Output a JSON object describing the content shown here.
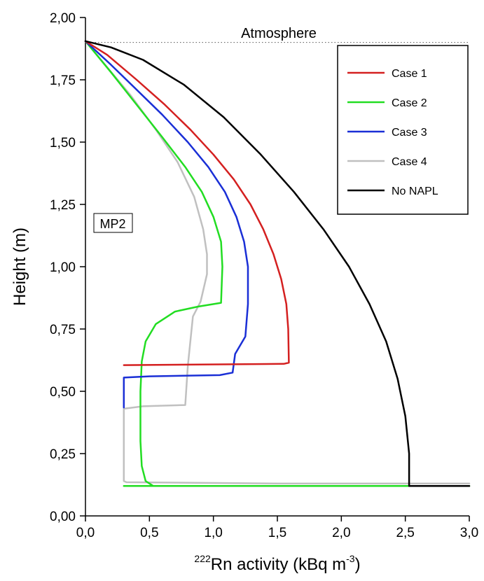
{
  "chart_data": {
    "type": "line",
    "xlabel_sup": "222",
    "xlabel_main": "Rn activity (kBq m",
    "xlabel_exp": "-3",
    "xlabel_close": ")",
    "ylabel": "Height (m)",
    "xlim": [
      0,
      3
    ],
    "ylim": [
      0,
      2
    ],
    "xticks": [
      "0,0",
      "0,5",
      "1,0",
      "1,5",
      "2,0",
      "2,5",
      "3,0"
    ],
    "yticks": [
      "0,00",
      "0,25",
      "0,50",
      "0,75",
      "1,00",
      "1,25",
      "1,50",
      "1,75",
      "2,00"
    ],
    "grid": false,
    "legend_position": "top-right",
    "annotations": {
      "atmosphere_label": "Atmosphere",
      "atmosphere_level": 1.9,
      "sample_label": "MP2"
    },
    "series": [
      {
        "name": "Case 1",
        "color": "#d42020",
        "points": [
          [
            0.3,
            0.605
          ],
          [
            1.55,
            0.61
          ],
          [
            1.59,
            0.615
          ],
          [
            1.585,
            0.75
          ],
          [
            1.57,
            0.85
          ],
          [
            1.53,
            0.95
          ],
          [
            1.47,
            1.05
          ],
          [
            1.39,
            1.15
          ],
          [
            1.29,
            1.25
          ],
          [
            1.16,
            1.35
          ],
          [
            1.0,
            1.45
          ],
          [
            0.82,
            1.55
          ],
          [
            0.62,
            1.65
          ],
          [
            0.4,
            1.75
          ],
          [
            0.17,
            1.85
          ],
          [
            0.0,
            1.905
          ]
        ]
      },
      {
        "name": "Case 2",
        "color": "#22dd22",
        "points": [
          [
            0.3,
            0.12
          ],
          [
            0.53,
            0.12
          ],
          [
            1.5,
            0.12
          ],
          [
            2.3,
            0.12
          ],
          [
            3.0,
            0.12
          ],
          [
            0.53,
            0.12
          ],
          [
            0.47,
            0.14
          ],
          [
            0.44,
            0.2
          ],
          [
            0.43,
            0.3
          ],
          [
            0.43,
            0.5
          ],
          [
            0.44,
            0.62
          ],
          [
            0.47,
            0.7
          ],
          [
            0.55,
            0.77
          ],
          [
            0.7,
            0.82
          ],
          [
            0.88,
            0.84
          ],
          [
            1.06,
            0.855
          ],
          [
            1.07,
            1.0
          ],
          [
            1.06,
            1.1
          ],
          [
            1.0,
            1.2
          ],
          [
            0.91,
            1.3
          ],
          [
            0.78,
            1.4
          ],
          [
            0.6,
            1.52
          ],
          [
            0.4,
            1.65
          ],
          [
            0.2,
            1.78
          ],
          [
            0.0,
            1.905
          ]
        ]
      },
      {
        "name": "Case 3",
        "color": "#1a2fd6",
        "points": [
          [
            0.3,
            0.435
          ],
          [
            0.3,
            0.555
          ],
          [
            0.5,
            0.56
          ],
          [
            1.05,
            0.565
          ],
          [
            1.15,
            0.575
          ],
          [
            1.17,
            0.65
          ],
          [
            1.25,
            0.72
          ],
          [
            1.27,
            0.85
          ],
          [
            1.27,
            1.0
          ],
          [
            1.24,
            1.1
          ],
          [
            1.18,
            1.2
          ],
          [
            1.09,
            1.3
          ],
          [
            0.96,
            1.4
          ],
          [
            0.8,
            1.5
          ],
          [
            0.6,
            1.61
          ],
          [
            0.4,
            1.71
          ],
          [
            0.2,
            1.81
          ],
          [
            0.0,
            1.905
          ]
        ]
      },
      {
        "name": "Case 4",
        "color": "#c0c0c0",
        "points": [
          [
            3.0,
            0.13
          ],
          [
            1.5,
            0.13
          ],
          [
            0.32,
            0.135
          ],
          [
            0.3,
            0.14
          ],
          [
            0.3,
            0.43
          ],
          [
            0.45,
            0.44
          ],
          [
            0.78,
            0.445
          ],
          [
            0.8,
            0.6
          ],
          [
            0.84,
            0.8
          ],
          [
            0.9,
            0.86
          ],
          [
            0.95,
            0.97
          ],
          [
            0.95,
            1.05
          ],
          [
            0.92,
            1.15
          ],
          [
            0.85,
            1.28
          ],
          [
            0.72,
            1.42
          ],
          [
            0.55,
            1.55
          ],
          [
            0.35,
            1.69
          ],
          [
            0.17,
            1.8
          ],
          [
            0.0,
            1.905
          ]
        ]
      },
      {
        "name": "No NAPL",
        "color": "#000000",
        "points": [
          [
            3.0,
            0.12
          ],
          [
            2.53,
            0.12
          ],
          [
            2.53,
            0.25
          ],
          [
            2.5,
            0.4
          ],
          [
            2.44,
            0.55
          ],
          [
            2.35,
            0.7
          ],
          [
            2.22,
            0.85
          ],
          [
            2.06,
            1.0
          ],
          [
            1.86,
            1.15
          ],
          [
            1.63,
            1.3
          ],
          [
            1.37,
            1.45
          ],
          [
            1.08,
            1.6
          ],
          [
            0.77,
            1.73
          ],
          [
            0.45,
            1.83
          ],
          [
            0.2,
            1.88
          ],
          [
            0.0,
            1.905
          ]
        ]
      }
    ]
  }
}
